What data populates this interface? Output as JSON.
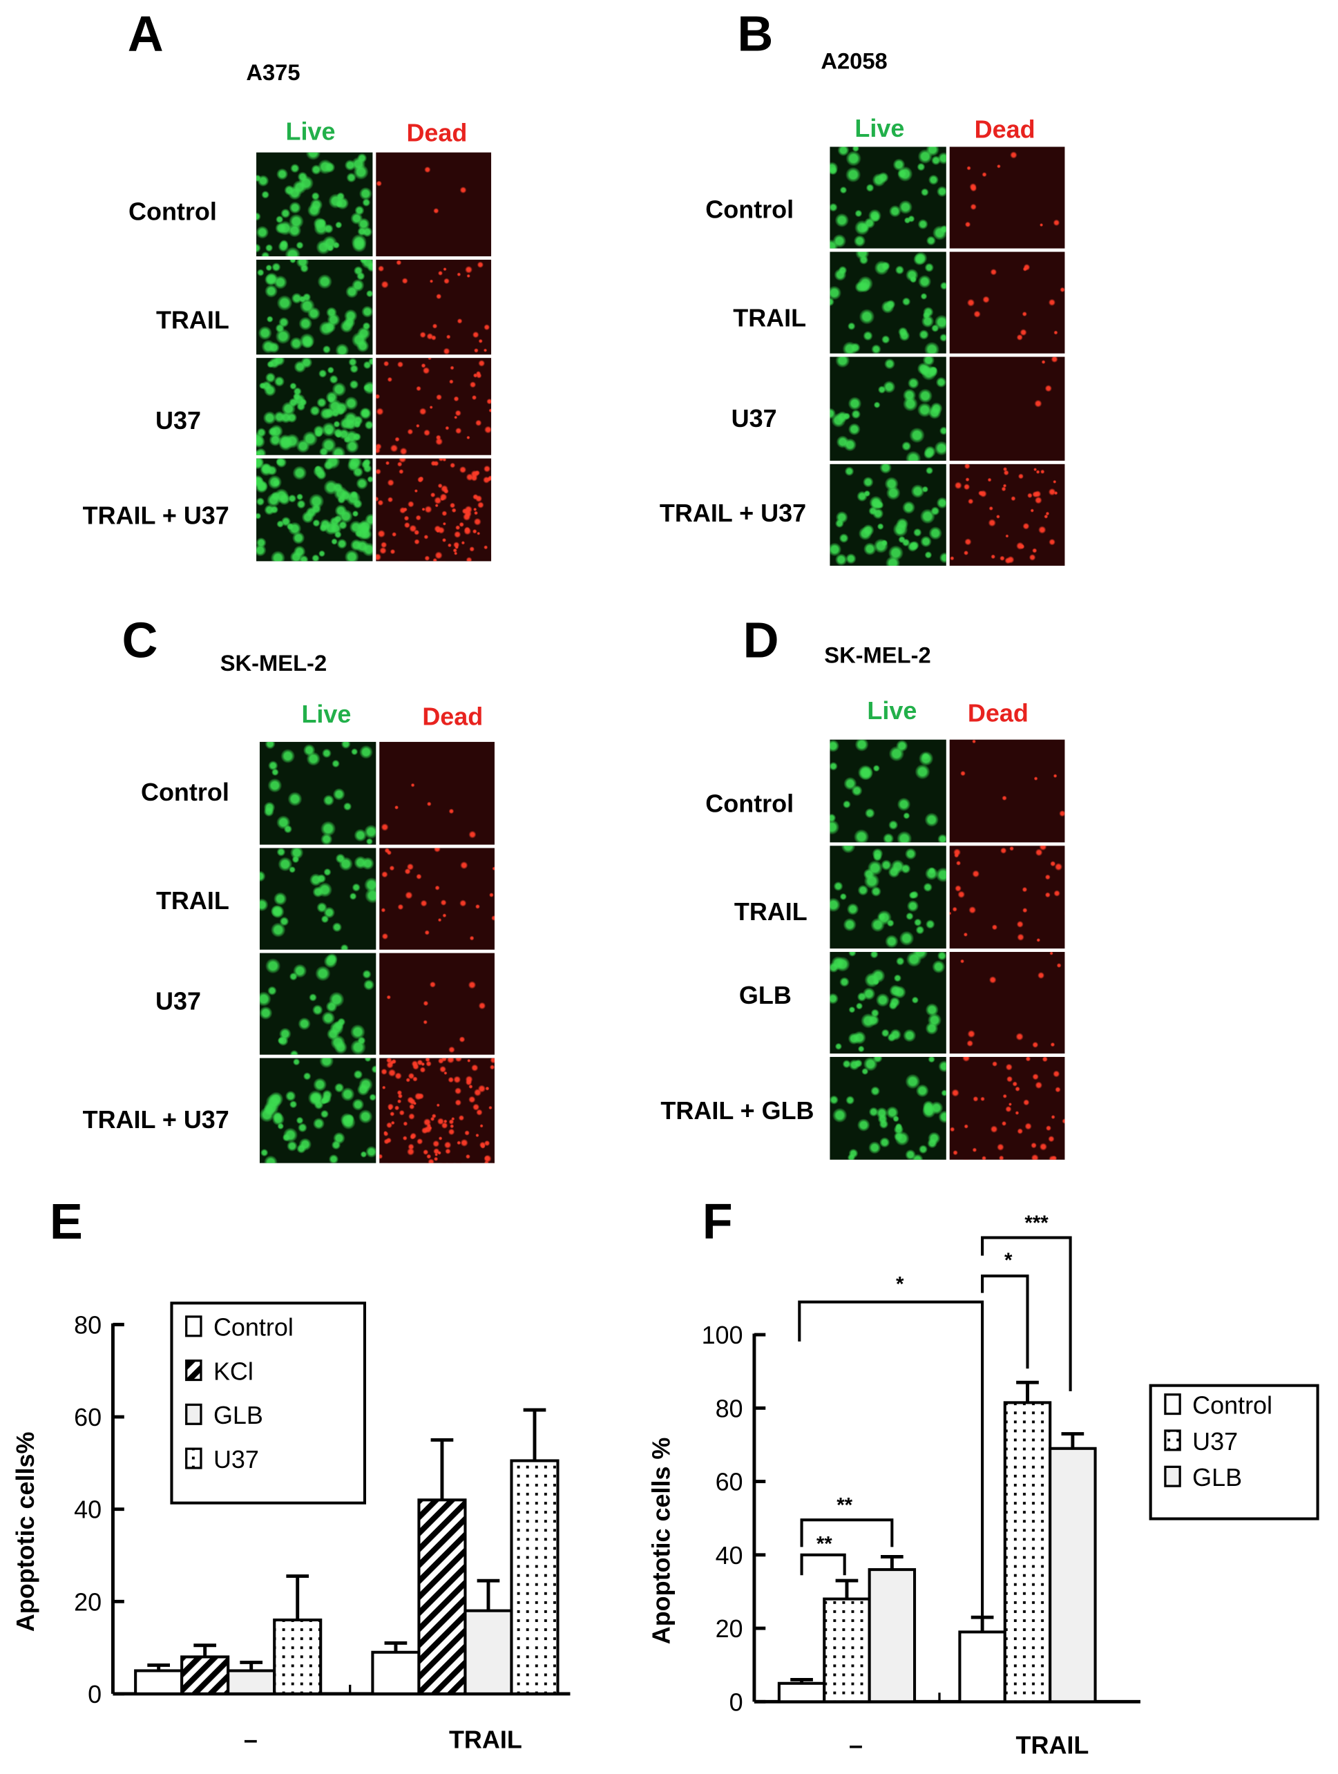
{
  "panels": [
    {
      "letter": "A",
      "cell_line": "A375",
      "live": "Live",
      "dead": "Dead",
      "rows": [
        "Control",
        "TRAIL",
        "U37",
        "TRAIL + U37"
      ],
      "live_color": "#22b04a",
      "dead_color": "#e8231f"
    },
    {
      "letter": "B",
      "cell_line": "A2058",
      "live": "Live",
      "dead": "Dead",
      "rows": [
        "Control",
        "TRAIL",
        "U37",
        "TRAIL + U37"
      ]
    },
    {
      "letter": "C",
      "cell_line": "SK-MEL-2",
      "live": "Live",
      "dead": "Dead",
      "rows": [
        "Control",
        "TRAIL",
        "U37",
        "TRAIL + U37"
      ]
    },
    {
      "letter": "D",
      "cell_line": "SK-MEL-2",
      "live": "Live",
      "dead": "Dead",
      "rows": [
        "Control",
        "TRAIL",
        "GLB",
        "TRAIL + GLB"
      ]
    }
  ],
  "chart_data": [
    {
      "panel": "E",
      "type": "bar",
      "ylabel": "Apoptotic cells%",
      "xlabel": "",
      "ylim": [
        0,
        80
      ],
      "yticks": [
        "0",
        "20",
        "40",
        "60",
        "80"
      ],
      "categories": [
        "–",
        "TRAIL"
      ],
      "legend_position": "top-left",
      "grid": false,
      "series": [
        {
          "name": "Control",
          "values": [
            5,
            9
          ],
          "errors": [
            1.2,
            2
          ],
          "pattern": "white"
        },
        {
          "name": "KCl",
          "values": [
            8,
            42
          ],
          "errors": [
            2.5,
            13
          ],
          "pattern": "hatch"
        },
        {
          "name": "GLB",
          "values": [
            5,
            18
          ],
          "errors": [
            1.8,
            6.5
          ],
          "pattern": "gray"
        },
        {
          "name": "U37",
          "values": [
            16,
            50.5
          ],
          "errors": [
            9.5,
            11
          ],
          "pattern": "dots"
        }
      ]
    },
    {
      "panel": "F",
      "type": "bar",
      "ylabel": "Apoptotic cells %",
      "xlabel": "",
      "ylim": [
        0,
        100
      ],
      "yticks": [
        "0",
        "20",
        "40",
        "60",
        "80",
        "100"
      ],
      "categories": [
        "–",
        "TRAIL"
      ],
      "legend_position": "right",
      "grid": false,
      "series": [
        {
          "name": "Control",
          "values": [
            5,
            19
          ],
          "errors": [
            1,
            4
          ],
          "pattern": "white"
        },
        {
          "name": "U37",
          "values": [
            28,
            81.5
          ],
          "errors": [
            5,
            5.5
          ],
          "pattern": "dots"
        },
        {
          "name": "GLB",
          "values": [
            36,
            69
          ],
          "errors": [
            3.5,
            4
          ],
          "pattern": "gray"
        }
      ],
      "significance": [
        "*",
        "*",
        "***",
        "**",
        "**"
      ]
    }
  ]
}
